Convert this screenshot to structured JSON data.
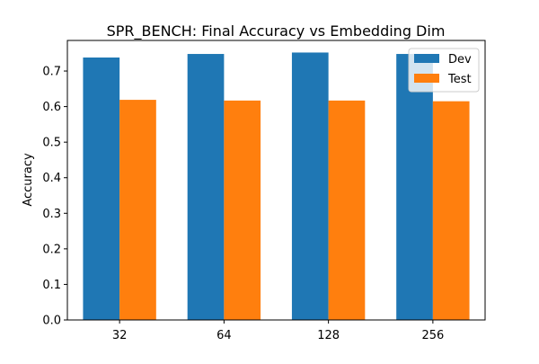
{
  "chart_data": {
    "type": "bar",
    "title": "SPR_BENCH: Final Accuracy vs Embedding Dim",
    "xlabel": "",
    "ylabel": "Accuracy",
    "categories": [
      "32",
      "64",
      "128",
      "256"
    ],
    "series": [
      {
        "name": "Dev",
        "color": "#1f77b4",
        "values": [
          0.738,
          0.748,
          0.752,
          0.748
        ]
      },
      {
        "name": "Test",
        "color": "#ff7f0e",
        "values": [
          0.619,
          0.617,
          0.617,
          0.615
        ]
      }
    ],
    "ylim": [
      0,
      0.786
    ],
    "yticks": [
      0.0,
      0.1,
      0.2,
      0.3,
      0.4,
      0.5,
      0.6,
      0.7
    ],
    "ytick_labels": [
      "0.0",
      "0.1",
      "0.2",
      "0.3",
      "0.4",
      "0.5",
      "0.6",
      "0.7"
    ],
    "grid": false,
    "legend_position": "top-right"
  }
}
